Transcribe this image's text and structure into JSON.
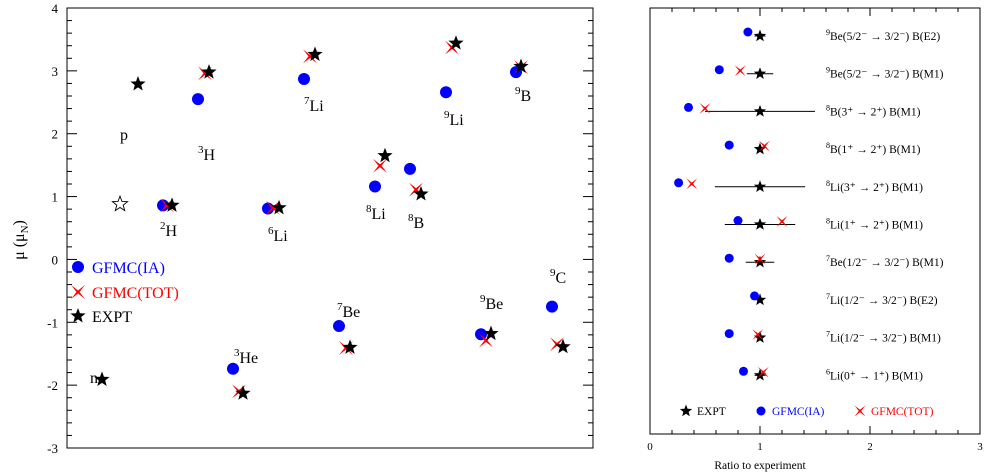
{
  "colors": {
    "ia": "#0000ff",
    "tot": "#ff0000",
    "expt": "#000000"
  },
  "left": {
    "ylabel_main": "μ (μ",
    "ylabel_sub": "N",
    "ylabel_end": ")",
    "yticks": [
      4,
      3,
      2,
      1,
      0,
      -1,
      -2,
      -3
    ],
    "legend": {
      "ia": "GFMC(IA)",
      "tot": "GFMC(TOT)",
      "expt": "EXPT"
    }
  },
  "right": {
    "xlabel": "Ratio to experiment",
    "xticks": [
      0,
      1,
      2,
      3
    ],
    "legend": {
      "expt": "EXPT",
      "ia": "GFMC(IA)",
      "tot": "GFMC(TOT)"
    },
    "rows": [
      {
        "sup": "9",
        "text": "Be(5/2⁻ → 3/2⁻) B(E2)"
      },
      {
        "sup": "9",
        "text": "Be(5/2⁻ → 3/2⁻) B(M1)"
      },
      {
        "sup": "8",
        "text": "B(3⁺ → 2⁺) B(M1)"
      },
      {
        "sup": "8",
        "text": "B(1⁺ → 2⁺) B(M1)"
      },
      {
        "sup": "8",
        "text": "Li(3⁺ → 2⁺) B(M1)"
      },
      {
        "sup": "8",
        "text": "Li(1⁺ → 2⁺) B(M1)"
      },
      {
        "sup": "7",
        "text": "Be(1/2⁻ → 3/2⁻) B(M1)"
      },
      {
        "sup": "7",
        "text": "Li(1/2⁻ → 3/2⁻) B(E2)"
      },
      {
        "sup": "7",
        "text": "Li(1/2⁻ → 3/2⁻) B(M1)"
      },
      {
        "sup": "6",
        "text": "Li(0⁺ → 1⁺) B(M1)"
      }
    ]
  },
  "chart_data": [
    {
      "type": "scatter",
      "title": "",
      "ylabel": "μ (μN)",
      "ylim": [
        -3,
        4
      ],
      "series": [
        {
          "name": "GFMC(IA)",
          "points": [
            {
              "nucleus": "2H",
              "y": 0.86
            },
            {
              "nucleus": "3H",
              "y": 2.55
            },
            {
              "nucleus": "6Li",
              "y": 0.81
            },
            {
              "nucleus": "7Li",
              "y": 2.87
            },
            {
              "nucleus": "8Li",
              "y": 1.16
            },
            {
              "nucleus": "8B",
              "y": 1.44
            },
            {
              "nucleus": "9Li",
              "y": 2.66
            },
            {
              "nucleus": "9B",
              "y": 2.98
            },
            {
              "nucleus": "3He",
              "y": -1.74
            },
            {
              "nucleus": "7Be",
              "y": -1.06
            },
            {
              "nucleus": "9Be",
              "y": -1.19
            },
            {
              "nucleus": "9C",
              "y": -0.75
            }
          ]
        },
        {
          "name": "GFMC(TOT)",
          "points": [
            {
              "nucleus": "2H",
              "y": 0.86
            },
            {
              "nucleus": "3H",
              "y": 2.96
            },
            {
              "nucleus": "6Li",
              "y": 0.82
            },
            {
              "nucleus": "7Li",
              "y": 3.23
            },
            {
              "nucleus": "8Li",
              "y": 1.49
            },
            {
              "nucleus": "8B",
              "y": 1.11
            },
            {
              "nucleus": "9Li",
              "y": 3.37
            },
            {
              "nucleus": "9B",
              "y": 3.06
            },
            {
              "nucleus": "3He",
              "y": -2.1
            },
            {
              "nucleus": "7Be",
              "y": -1.41
            },
            {
              "nucleus": "9Be",
              "y": -1.29
            },
            {
              "nucleus": "9C",
              "y": -1.35
            }
          ]
        },
        {
          "name": "EXPT",
          "points": [
            {
              "nucleus": "p",
              "y": 2.79
            },
            {
              "nucleus": "n",
              "y": -1.91
            },
            {
              "nucleus": "2H",
              "y": 0.86
            },
            {
              "nucleus": "3H",
              "y": 2.98
            },
            {
              "nucleus": "6Li",
              "y": 0.82
            },
            {
              "nucleus": "7Li",
              "y": 3.26
            },
            {
              "nucleus": "8Li",
              "y": 1.65
            },
            {
              "nucleus": "8B",
              "y": 1.04
            },
            {
              "nucleus": "9Li",
              "y": 3.44
            },
            {
              "nucleus": "9B",
              "y": 3.07
            },
            {
              "nucleus": "3He",
              "y": -2.13
            },
            {
              "nucleus": "7Be",
              "y": -1.4
            },
            {
              "nucleus": "9Be",
              "y": -1.18
            },
            {
              "nucleus": "9C",
              "y": -1.39
            }
          ]
        }
      ],
      "open_star": {
        "near": "2H",
        "y": 0.88
      }
    },
    {
      "type": "scatter",
      "title": "",
      "xlabel": "Ratio to experiment",
      "xlim": [
        0,
        3
      ],
      "rows": [
        "9Be(5/2- → 3/2-) B(E2)",
        "9Be(5/2- → 3/2-) B(M1)",
        "8B(3+ → 2+) B(M1)",
        "8B(1+ → 2+) B(M1)",
        "8Li(3+ → 2+) B(M1)",
        "8Li(1+ → 2+) B(M1)",
        "7Be(1/2- → 3/2-) B(M1)",
        "7Li(1/2- → 3/2-) B(E2)",
        "7Li(1/2- → 3/2-) B(M1)",
        "6Li(0+ → 1+) B(M1)"
      ],
      "expt": [
        1,
        1,
        1,
        1,
        1,
        1,
        1,
        1,
        1,
        1
      ],
      "expt_err": [
        0.05,
        0.12,
        0.5,
        0.03,
        0.41,
        0.32,
        0.13,
        0.03,
        0.03,
        0.05
      ],
      "ia": [
        0.89,
        0.63,
        0.35,
        0.72,
        0.26,
        0.8,
        0.72,
        0.95,
        0.72,
        0.85
      ],
      "tot": [
        null,
        0.82,
        0.5,
        1.04,
        0.38,
        1.2,
        1.0,
        null,
        0.98,
        1.03
      ]
    }
  ]
}
